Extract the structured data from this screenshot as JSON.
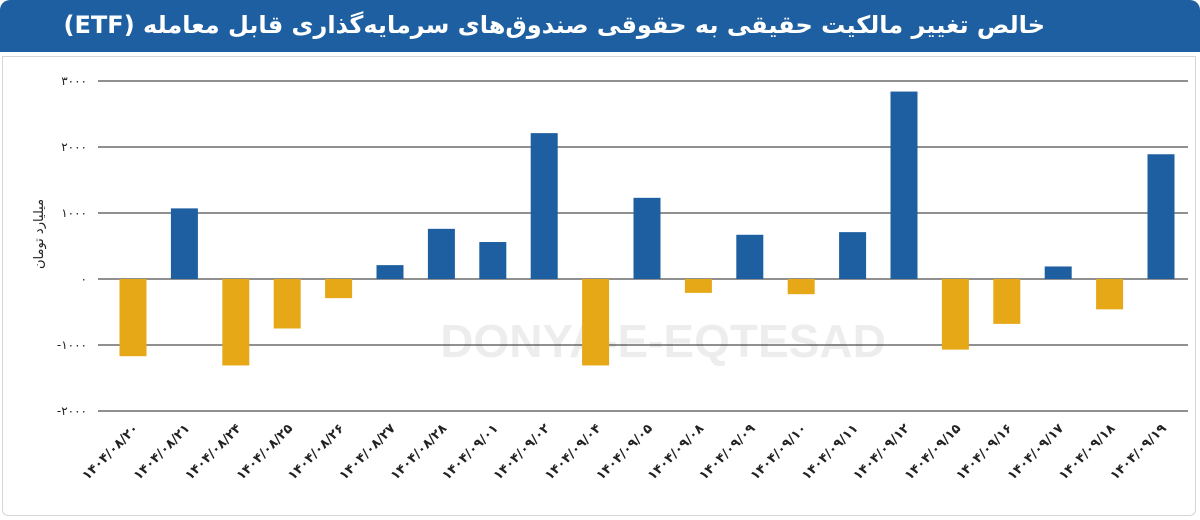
{
  "header": {
    "title": "خالص تغییر مالکیت حقیقی به حقوقی صندوق‌های سرمایه‌گذاری قابل معامله (ETF)"
  },
  "watermark": {
    "text": "DONYA-E-EQTESAD"
  },
  "colors": {
    "positive": "#1d5fa0",
    "negative": "#e6a817",
    "header": "#1d5fa0"
  },
  "chart_data": {
    "type": "bar",
    "title": "خالص تغییر مالکیت حقیقی به حقوقی صندوق‌های سرمایه‌گذاری قابل معامله (ETF)",
    "ylabel": "میلیارد تومان",
    "xlabel": "",
    "ylim": [
      -2000,
      3000
    ],
    "yticks": [
      3000,
      2000,
      1000,
      0,
      -1000,
      -2000
    ],
    "ytick_labels": [
      "۳۰۰۰",
      "۲۰۰۰",
      "۱۰۰۰",
      "۰",
      "-۱۰۰۰",
      "-۲۰۰۰"
    ],
    "grid": true,
    "categories": [
      "۱۴۰۴/۰۸/۲۰",
      "۱۴۰۴/۰۸/۲۱",
      "۱۴۰۴/۰۸/۲۴",
      "۱۴۰۴/۰۸/۲۵",
      "۱۴۰۴/۰۸/۲۶",
      "۱۴۰۴/۰۸/۲۷",
      "۱۴۰۴/۰۸/۲۸",
      "۱۴۰۴/۰۹/۰۱",
      "۱۴۰۴/۰۹/۰۲",
      "۱۴۰۴/۰۹/۰۴",
      "۱۴۰۴/۰۹/۰۵",
      "۱۴۰۴/۰۹/۰۸",
      "۱۴۰۴/۰۹/۰۹",
      "۱۴۰۴/۰۹/۱۰",
      "۱۴۰۴/۰۹/۱۱",
      "۱۴۰۴/۰۹/۱۲",
      "۱۴۰۴/۰۹/۱۵",
      "۱۴۰۴/۰۹/۱۶",
      "۱۴۰۴/۰۹/۱۷",
      "۱۴۰۴/۰۹/۱۸",
      "۱۴۰۴/۰۹/۱۹"
    ],
    "values": [
      -1170,
      1070,
      -1310,
      -750,
      -290,
      210,
      760,
      560,
      2210,
      -1310,
      1230,
      -210,
      670,
      -230,
      710,
      2840,
      -1070,
      -680,
      190,
      -460,
      1890
    ]
  }
}
